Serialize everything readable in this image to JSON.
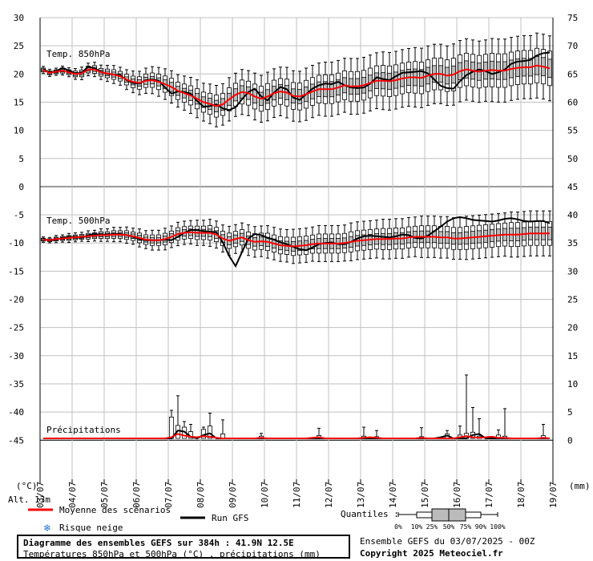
{
  "chart_data": {
    "type": "box",
    "x_dates": [
      "03/07",
      "04/07",
      "05/07",
      "06/07",
      "07/07",
      "08/07",
      "09/07",
      "10/07",
      "11/07",
      "12/07",
      "13/07",
      "14/07",
      "15/07",
      "16/07",
      "17/07",
      "18/07",
      "19/07"
    ],
    "left_axis_ticks": [
      30,
      25,
      20,
      15,
      10,
      5,
      0,
      -5,
      -10,
      -15,
      -20,
      -25,
      -30,
      -35,
      -40,
      -45
    ],
    "right_axis_ticks": [
      75,
      70,
      65,
      60,
      55,
      50,
      45,
      40,
      35,
      30,
      25,
      20,
      15,
      10,
      5,
      0
    ],
    "left_unit": "(°C)",
    "right_unit": "(mm)",
    "altitude_label": "Alt. 13m",
    "panels": [
      {
        "label": "Temp. 850hPa",
        "mean": [
          20.7,
          20.2,
          20.4,
          20.6,
          20.3,
          20.0,
          20.1,
          20.8,
          20.8,
          20.3,
          20.1,
          19.9,
          19.6,
          19.0,
          18.6,
          18.4,
          18.8,
          18.9,
          18.6,
          18.2,
          17.7,
          17.0,
          16.6,
          16.2,
          15.6,
          15.0,
          14.7,
          14.3,
          14.6,
          15.5,
          16.3,
          16.8,
          16.6,
          16.0,
          15.6,
          16.0,
          16.6,
          16.9,
          16.7,
          16.1,
          16.0,
          16.4,
          16.9,
          17.3,
          17.3,
          17.3,
          17.6,
          18.0,
          17.8,
          17.8,
          18.0,
          18.4,
          18.8,
          18.8,
          18.7,
          18.9,
          19.2,
          19.4,
          19.4,
          19.3,
          19.7,
          20.0,
          20.0,
          19.7,
          19.9,
          20.5,
          20.8,
          20.6,
          20.4,
          20.6,
          20.7,
          20.6,
          20.6,
          20.9,
          21.1,
          21.2,
          21.2,
          21.5,
          21.3,
          21.0
        ],
        "run": [
          20.8,
          20.3,
          20.5,
          21.1,
          20.6,
          20.1,
          20.2,
          21.3,
          21.0,
          20.4,
          20.0,
          19.9,
          19.8,
          18.9,
          18.4,
          18.3,
          18.9,
          19.0,
          18.8,
          17.6,
          16.5,
          16.9,
          16.8,
          16.5,
          15.2,
          14.2,
          14.3,
          14.6,
          13.9,
          13.6,
          14.1,
          15.5,
          16.8,
          17.4,
          16.0,
          15.3,
          16.7,
          17.7,
          17.3,
          15.8,
          15.4,
          16.4,
          17.4,
          18.0,
          18.3,
          18.2,
          18.6,
          18.0,
          17.6,
          17.5,
          17.6,
          18.3,
          19.4,
          19.1,
          18.9,
          19.6,
          20.2,
          20.3,
          20.4,
          20.5,
          20.1,
          19.0,
          17.9,
          17.5,
          17.4,
          18.7,
          19.8,
          20.4,
          20.8,
          20.5,
          20.0,
          20.3,
          20.8,
          21.8,
          22.2,
          22.3,
          22.5,
          23.3,
          23.7,
          23.8
        ],
        "spread": [
          0.4,
          0.4,
          0.4,
          0.5,
          0.5,
          0.6,
          0.7,
          0.7,
          0.8,
          0.8,
          0.9,
          1.0,
          1.0,
          1.1,
          1.2,
          1.3,
          1.4,
          1.5,
          1.6,
          1.7,
          1.8,
          1.8,
          1.9,
          2.0,
          2.1,
          2.1,
          2.2,
          2.3,
          2.3,
          2.4,
          2.4,
          2.5,
          2.5,
          2.6,
          2.6,
          2.7,
          2.7,
          2.7,
          2.8,
          2.8,
          2.8,
          2.9,
          2.9,
          2.9,
          3.0,
          3.0,
          3.0,
          3.0,
          3.1,
          3.1,
          3.1,
          3.1,
          3.1,
          3.2,
          3.2,
          3.2,
          3.2,
          3.2,
          3.3,
          3.3,
          3.3,
          3.3,
          3.3,
          3.3,
          3.4,
          3.4,
          3.4,
          3.4,
          3.4,
          3.4,
          3.5,
          3.5,
          3.5,
          3.5,
          3.5,
          3.5,
          3.5,
          3.6,
          3.6,
          3.6
        ]
      },
      {
        "label": "Temp. 500hPa",
        "mean": [
          -9.4,
          -9.5,
          -9.3,
          -9.2,
          -9.1,
          -9.0,
          -8.9,
          -8.8,
          -8.7,
          -8.6,
          -8.6,
          -8.5,
          -8.5,
          -8.6,
          -8.8,
          -9.1,
          -9.4,
          -9.5,
          -9.5,
          -9.3,
          -8.9,
          -8.4,
          -8.2,
          -8.1,
          -8.2,
          -8.2,
          -8.2,
          -8.5,
          -9.2,
          -9.6,
          -9.3,
          -9.0,
          -9.5,
          -9.8,
          -9.7,
          -9.8,
          -10.1,
          -10.4,
          -10.5,
          -10.6,
          -10.5,
          -10.4,
          -10.2,
          -10.1,
          -10.1,
          -10.1,
          -10.1,
          -10.0,
          -9.8,
          -9.6,
          -9.5,
          -9.4,
          -9.3,
          -9.3,
          -9.3,
          -9.2,
          -9.2,
          -9.0,
          -8.9,
          -8.9,
          -8.9,
          -8.9,
          -9.0,
          -9.0,
          -9.2,
          -9.2,
          -9.1,
          -9.0,
          -8.9,
          -8.8,
          -8.7,
          -8.6,
          -8.5,
          -8.5,
          -8.5,
          -8.4,
          -8.3,
          -8.3,
          -8.3,
          -8.3
        ],
        "run": [
          -9.3,
          -9.6,
          -9.4,
          -9.1,
          -8.9,
          -9.0,
          -9.1,
          -8.6,
          -8.4,
          -8.5,
          -8.5,
          -8.4,
          -8.4,
          -8.6,
          -8.9,
          -9.3,
          -9.5,
          -9.5,
          -9.5,
          -9.4,
          -9.5,
          -8.9,
          -8.2,
          -7.7,
          -7.7,
          -7.9,
          -8.0,
          -8.1,
          -9.9,
          -12.3,
          -14.1,
          -11.6,
          -9.2,
          -8.4,
          -8.6,
          -9.1,
          -9.4,
          -9.9,
          -10.2,
          -10.7,
          -11.1,
          -11.3,
          -10.8,
          -10.2,
          -10.0,
          -9.9,
          -10.2,
          -10.2,
          -9.8,
          -9.2,
          -8.8,
          -8.7,
          -8.8,
          -8.9,
          -9.0,
          -8.8,
          -8.5,
          -8.6,
          -9.1,
          -9.2,
          -8.7,
          -7.9,
          -7.1,
          -6.2,
          -5.6,
          -5.4,
          -5.6,
          -5.9,
          -6.0,
          -6.1,
          -6.2,
          -6.0,
          -5.7,
          -5.6,
          -5.8,
          -6.1,
          -6.2,
          -6.1,
          -6.1,
          -6.5
        ],
        "spread": [
          0.3,
          0.3,
          0.4,
          0.4,
          0.5,
          0.5,
          0.5,
          0.6,
          0.6,
          0.7,
          0.7,
          0.8,
          0.8,
          0.9,
          0.9,
          1.0,
          1.0,
          1.1,
          1.1,
          1.2,
          1.2,
          1.3,
          1.3,
          1.3,
          1.4,
          1.4,
          1.5,
          1.5,
          1.5,
          1.6,
          1.6,
          1.6,
          1.7,
          1.7,
          1.7,
          1.8,
          1.8,
          1.8,
          1.8,
          1.9,
          1.9,
          1.9,
          1.9,
          2.0,
          2.0,
          2.0,
          2.0,
          2.0,
          2.1,
          2.1,
          2.1,
          2.1,
          2.1,
          2.2,
          2.2,
          2.2,
          2.2,
          2.2,
          2.2,
          2.3,
          2.3,
          2.3,
          2.3,
          2.3,
          2.3,
          2.3,
          2.4,
          2.4,
          2.4,
          2.4,
          2.4,
          2.4,
          2.4,
          2.5,
          2.5,
          2.5,
          2.5,
          2.5,
          2.5,
          2.5
        ]
      },
      {
        "label": "Précipitations",
        "mean_mm": [
          0,
          0,
          0,
          0,
          0,
          0,
          0,
          0,
          0,
          0,
          0,
          0,
          0,
          0,
          0,
          0,
          0,
          0,
          0,
          0,
          0.2,
          0.8,
          0.5,
          0.3,
          0.2,
          0.4,
          0.3,
          0.1,
          0,
          0,
          0,
          0,
          0,
          0,
          0.1,
          0,
          0,
          0,
          0,
          0,
          0,
          0,
          0.1,
          0.2,
          0,
          0,
          0,
          0,
          0,
          0,
          0.1,
          0.2,
          0.1,
          0,
          0,
          0,
          0,
          0,
          0,
          0.1,
          0,
          0,
          0,
          0,
          0,
          0.2,
          0.4,
          0.2,
          0.1,
          0.2,
          0.3,
          0.1,
          0.1,
          0,
          0,
          0,
          0,
          0,
          0.1,
          0
        ],
        "run_mm": [
          0,
          0,
          0,
          0,
          0,
          0,
          0,
          0,
          0,
          0,
          0,
          0,
          0,
          0,
          0,
          0,
          0,
          0,
          0,
          0,
          0,
          1.4,
          1.2,
          0.3,
          0,
          0.6,
          0.9,
          0,
          0,
          0,
          0,
          0,
          0,
          0,
          0,
          0,
          0,
          0,
          0,
          0,
          0,
          0,
          0,
          0,
          0,
          0,
          0,
          0,
          0,
          0,
          0,
          0,
          0,
          0,
          0,
          0,
          0,
          0,
          0,
          0,
          0,
          0,
          0.2,
          0.5,
          0,
          0,
          0,
          0.6,
          0.8,
          0,
          0,
          0,
          0,
          0,
          0,
          0,
          0,
          0,
          0,
          0
        ],
        "boxes": [
          {
            "i": 20,
            "q90": 3.8,
            "max": 5
          },
          {
            "i": 21,
            "q90": 2.3,
            "max": 7.6
          },
          {
            "i": 22,
            "q90": 2,
            "max": 3
          },
          {
            "i": 23,
            "q90": 1.2,
            "max": 2.5
          },
          {
            "i": 25,
            "q90": 1.6,
            "max": 2
          },
          {
            "i": 26,
            "q90": 2.2,
            "max": 4.5
          },
          {
            "i": 28,
            "q90": 0.8,
            "max": 3.3
          },
          {
            "i": 34,
            "q90": 0.4,
            "max": 0.9
          },
          {
            "i": 43,
            "q90": 0.5,
            "max": 1.8
          },
          {
            "i": 50,
            "q90": 0.4,
            "max": 2
          },
          {
            "i": 52,
            "q90": 0.3,
            "max": 1.4
          },
          {
            "i": 59,
            "q90": 0.3,
            "max": 1.9
          },
          {
            "i": 63,
            "q90": 0.8,
            "max": 1.4
          },
          {
            "i": 65,
            "q90": 0.6,
            "max": 2.2
          },
          {
            "i": 66,
            "q90": 0.9,
            "max": 11.3
          },
          {
            "i": 67,
            "q90": 1.1,
            "max": 5.5
          },
          {
            "i": 68,
            "q90": 0.4,
            "max": 3.5
          },
          {
            "i": 71,
            "q90": 0.6,
            "max": 1.5
          },
          {
            "i": 72,
            "q90": 0.4,
            "max": 5.3
          },
          {
            "i": 78,
            "q90": 0.5,
            "max": 2.5
          }
        ]
      }
    ],
    "legend": {
      "mean": "Moyenne des scénarios",
      "run": "Run GFS",
      "snow": "Risque neige",
      "quantiles_title": "Quantiles :",
      "quantiles": [
        "0%",
        "10%",
        "25%",
        "50%",
        "75%",
        "90%",
        "100%"
      ]
    },
    "colors": {
      "mean": "#ff0000",
      "run": "#000000",
      "box": "#bbbbbb",
      "grid": "#c0c0c0",
      "snow": "#2a78d6"
    }
  },
  "footer": {
    "title": "Diagramme des ensembles GEFS sur 384h : 41.9N 12.5E",
    "subtitle": "Températures 850hPa et 500hPa (°C) , précipitations (mm)",
    "ensemble": "Ensemble GEFS du 03/07/2025 - 00Z",
    "copyright": "Copyright 2025 Meteociel.fr"
  }
}
